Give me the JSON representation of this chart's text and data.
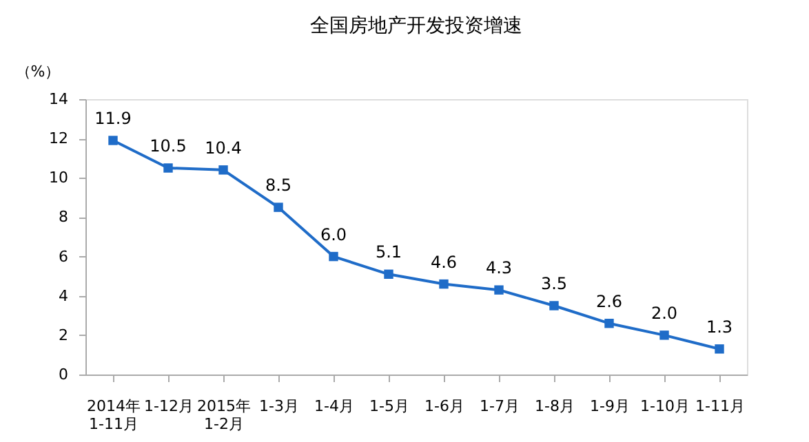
{
  "chart_data": {
    "type": "line",
    "title": "全国房地产开发投资增速",
    "ylabel": "（%）",
    "categories": [
      "2014年\n1-11月",
      "1-12月",
      "2015年\n1-2月",
      "1-3月",
      "1-4月",
      "1-5月",
      "1-6月",
      "1-7月",
      "1-8月",
      "1-9月",
      "1-10月",
      "1-11月"
    ],
    "series": [
      {
        "color": "#1f6cc8",
        "values": [
          11.9,
          10.5,
          10.4,
          8.5,
          6.0,
          5.1,
          4.6,
          4.3,
          3.5,
          2.6,
          2.0,
          1.3
        ],
        "value_labels": [
          "11.9",
          "10.5",
          "10.4",
          "8.5",
          "6.0",
          "5.1",
          "4.6",
          "4.3",
          "3.5",
          "2.6",
          "2.0",
          "1.3"
        ]
      }
    ],
    "ylim": [
      0,
      14
    ],
    "yticks": [
      0,
      2,
      4,
      6,
      8,
      10,
      12,
      14
    ],
    "marker": "square",
    "line_style": "solid",
    "grid": false,
    "legend": false
  }
}
